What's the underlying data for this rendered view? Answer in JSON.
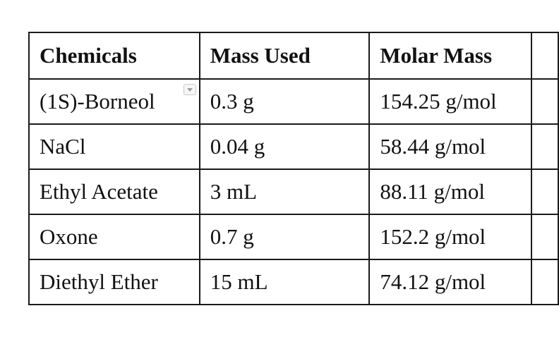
{
  "table": {
    "headers": [
      "Chemicals",
      "Mass Used",
      "Molar Mass",
      ""
    ],
    "rows": [
      [
        "(1S)-Borneol",
        "0.3 g",
        "154.25 g/mol",
        ""
      ],
      [
        "NaCl",
        "0.04 g",
        "58.44 g/mol",
        ""
      ],
      [
        "Ethyl Acetate",
        "3 mL",
        "88.11 g/mol",
        ""
      ],
      [
        "Oxone",
        "0.7 g",
        "152.2 g/mol",
        ""
      ],
      [
        "Diethyl Ether",
        "15 mL",
        "74.12 g/mol",
        ""
      ]
    ]
  },
  "icons": {
    "cell_dropdown": "chevron-down-icon"
  }
}
